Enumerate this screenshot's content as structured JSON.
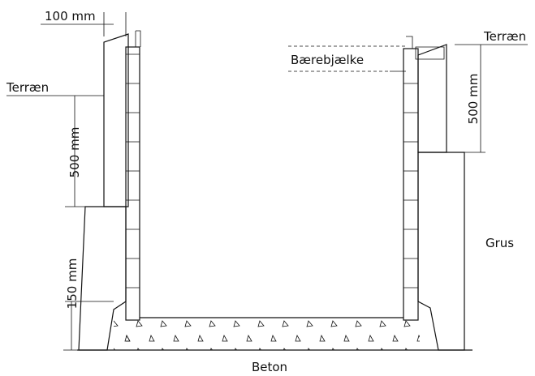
{
  "dimensions": {
    "top_width": "100 mm",
    "left_depth": "500 mm",
    "gravel_depth": "150 mm",
    "right_depth": "500 mm"
  },
  "labels": {
    "ground_left": "Terræn",
    "ground_right": "Terræn",
    "beam": "Bærebjælke",
    "gravel": "Grus",
    "concrete": "Beton"
  }
}
